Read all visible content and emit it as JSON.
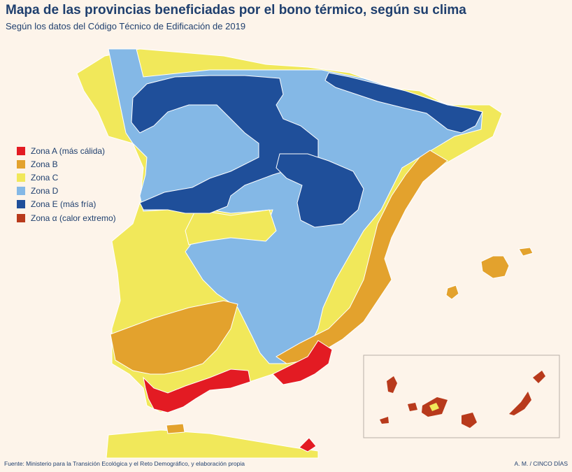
{
  "title": "Mapa de las provincias beneficiadas por el bono térmico, según su clima",
  "subtitle": "Según los datos del Código Técnico de Edificación de 2019",
  "legend": [
    {
      "label": "Zona A (más cálida)",
      "color": "#e31b23"
    },
    {
      "label": "Zona B",
      "color": "#e3a22d"
    },
    {
      "label": "Zona C",
      "color": "#f1e85a"
    },
    {
      "label": "Zona D",
      "color": "#84b8e6"
    },
    {
      "label": "Zona E (más fría)",
      "color": "#1f4f9a"
    },
    {
      "label": "Zona α (calor extremo)",
      "color": "#b83a1c"
    }
  ],
  "source": "Fuente: Ministerio para la Transición Ecológica y el Reto Demográfico, y elaboración propia",
  "credit": "A. M. / CINCO DÍAS"
}
